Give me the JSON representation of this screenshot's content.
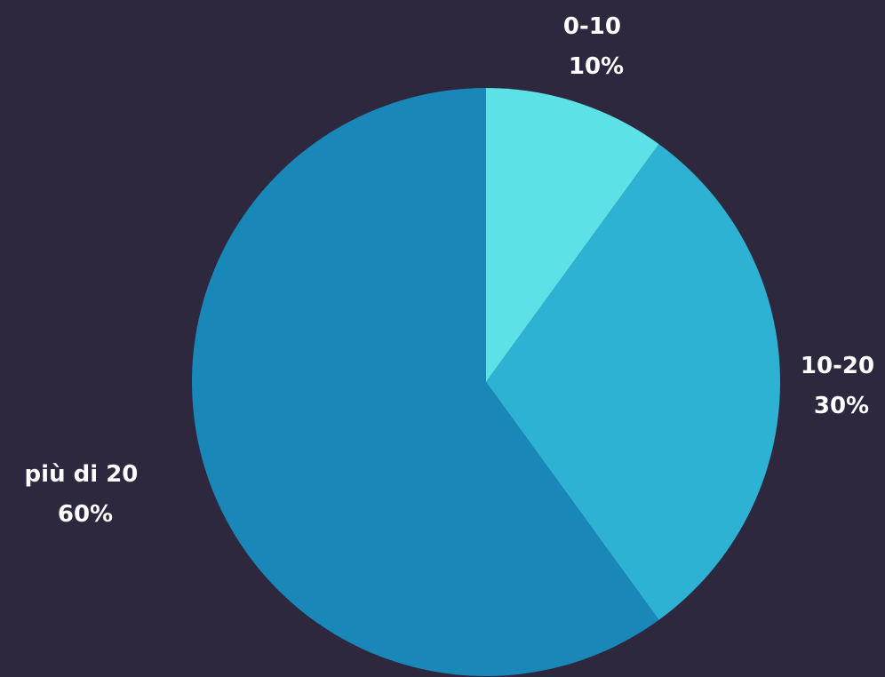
{
  "chart_data": {
    "type": "pie",
    "categories": [
      "0-10",
      "10-20",
      "più di 20"
    ],
    "values": [
      10,
      30,
      60
    ],
    "percent_labels": [
      "10%",
      "30%",
      "60%"
    ],
    "colors": [
      "#5ce1e6",
      "#2db2d4",
      "#1a87b9"
    ],
    "start_angle_deg": 0,
    "direction": "clockwise",
    "background": "#2e283f"
  }
}
